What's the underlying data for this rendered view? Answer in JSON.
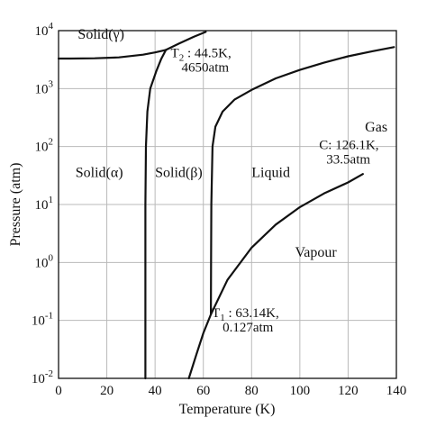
{
  "chart_data": {
    "type": "line",
    "title": "",
    "xlabel": "Temperature (K)",
    "ylabel": "Pressure (atm)",
    "xlim": [
      0,
      140
    ],
    "ylim_log10": [
      -2,
      4
    ],
    "y_scale": "log",
    "grid": true,
    "x_ticks": [
      "0",
      "20",
      "40",
      "60",
      "80",
      "100",
      "120",
      "140"
    ],
    "y_ticks": [
      {
        "base": "10",
        "exp": "-2"
      },
      {
        "base": "10",
        "exp": "-1"
      },
      {
        "base": "10",
        "exp": "0"
      },
      {
        "base": "10",
        "exp": "1"
      },
      {
        "base": "10",
        "exp": "2"
      },
      {
        "base": "10",
        "exp": "3"
      },
      {
        "base": "10",
        "exp": "4"
      }
    ],
    "series": [
      {
        "values": [
          [
            0,
            3300
          ],
          [
            5,
            3300
          ],
          [
            15,
            3330
          ],
          [
            25,
            3450
          ],
          [
            35,
            3850
          ],
          [
            40,
            4200
          ],
          [
            44.5,
            4650
          ]
        ]
      },
      {
        "values": [
          [
            44.5,
            4650
          ],
          [
            50,
            6000
          ],
          [
            56,
            7800
          ],
          [
            61,
            9500
          ]
        ]
      },
      {
        "values": [
          [
            36,
            0.01
          ],
          [
            36,
            0.1
          ],
          [
            36,
            1
          ],
          [
            36,
            10
          ],
          [
            36.2,
            100
          ],
          [
            36.8,
            400
          ],
          [
            38,
            1000
          ],
          [
            40.5,
            2000
          ],
          [
            42.5,
            3200
          ],
          [
            44.5,
            4650
          ]
        ]
      },
      {
        "values": [
          [
            63.14,
            0.127
          ],
          [
            63.2,
            1
          ],
          [
            63.3,
            10
          ],
          [
            63.8,
            100
          ],
          [
            65,
            220
          ],
          [
            68,
            400
          ],
          [
            73,
            650
          ],
          [
            80,
            950
          ],
          [
            90,
            1500
          ],
          [
            100,
            2100
          ],
          [
            110,
            2800
          ],
          [
            120,
            3600
          ],
          [
            130,
            4400
          ],
          [
            139,
            5200
          ]
        ]
      },
      {
        "values": [
          [
            54,
            0.01
          ],
          [
            57,
            0.025
          ],
          [
            60,
            0.06
          ],
          [
            63.14,
            0.127
          ],
          [
            70,
            0.5
          ],
          [
            80,
            1.8
          ],
          [
            90,
            4.5
          ],
          [
            100,
            9
          ],
          [
            110,
            15.5
          ],
          [
            120,
            24
          ],
          [
            126.1,
            33.5
          ]
        ]
      }
    ],
    "annotations": [
      {
        "text": "Solid(γ)",
        "x": 8,
        "y": 7200
      },
      {
        "text": "Solid(α)",
        "x": 7,
        "y": 30
      },
      {
        "text": "Solid(β)",
        "x": 40,
        "y": 30
      },
      {
        "text": "Liquid",
        "x": 80,
        "y": 30
      },
      {
        "text": "Gas",
        "x": 127,
        "y": 180
      },
      {
        "text": "Vapour",
        "x": 98,
        "y": 1.25
      },
      {
        "text": "T",
        "sub": "2",
        "rest": " : 44.5K,",
        "line2": "4650atm",
        "x": 46.5,
        "y": 3500
      },
      {
        "text": "T",
        "sub": "1",
        "rest": " : 63.14K,",
        "line2": "0.127atm",
        "x": 63.5,
        "y": 0.115
      },
      {
        "text": "C: 126.1K,",
        "line2": "33.5atm",
        "x": 108,
        "y": 90
      }
    ]
  }
}
